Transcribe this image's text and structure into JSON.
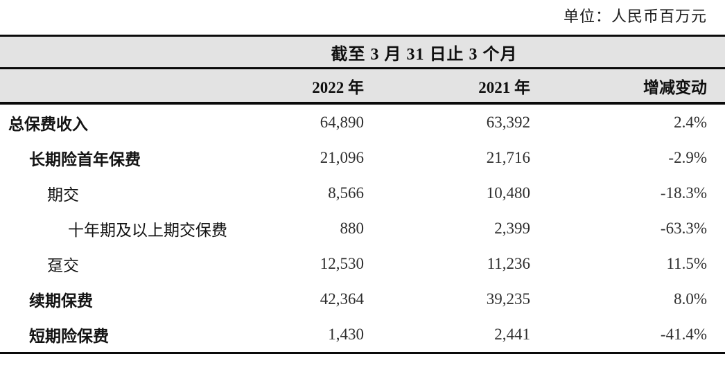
{
  "unit_label": "单位：人民币百万元",
  "table": {
    "period_header": "截至 3 月 31 日止 3 个月",
    "columns": [
      "2022 年",
      "2021 年",
      "增减变动"
    ],
    "rows": [
      {
        "label": "总保费收入",
        "v2022": "64,890",
        "v2021": "63,392",
        "change": "2.4%"
      },
      {
        "label": "长期险首年保费",
        "v2022": "21,096",
        "v2021": "21,716",
        "change": "-2.9%"
      },
      {
        "label": "期交",
        "v2022": "8,566",
        "v2021": "10,480",
        "change": "-18.3%"
      },
      {
        "label": "十年期及以上期交保费",
        "v2022": "880",
        "v2021": "2,399",
        "change": "-63.3%"
      },
      {
        "label": "趸交",
        "v2022": "12,530",
        "v2021": "11,236",
        "change": "11.5%"
      },
      {
        "label": "续期保费",
        "v2022": "42,364",
        "v2021": "39,235",
        "change": "8.0%"
      },
      {
        "label": "短期险保费",
        "v2022": "1,430",
        "v2021": "2,441",
        "change": "-41.4%"
      }
    ]
  },
  "colors": {
    "header_bg": "#e3e3e3",
    "rule_line": "#0a0a0a"
  }
}
